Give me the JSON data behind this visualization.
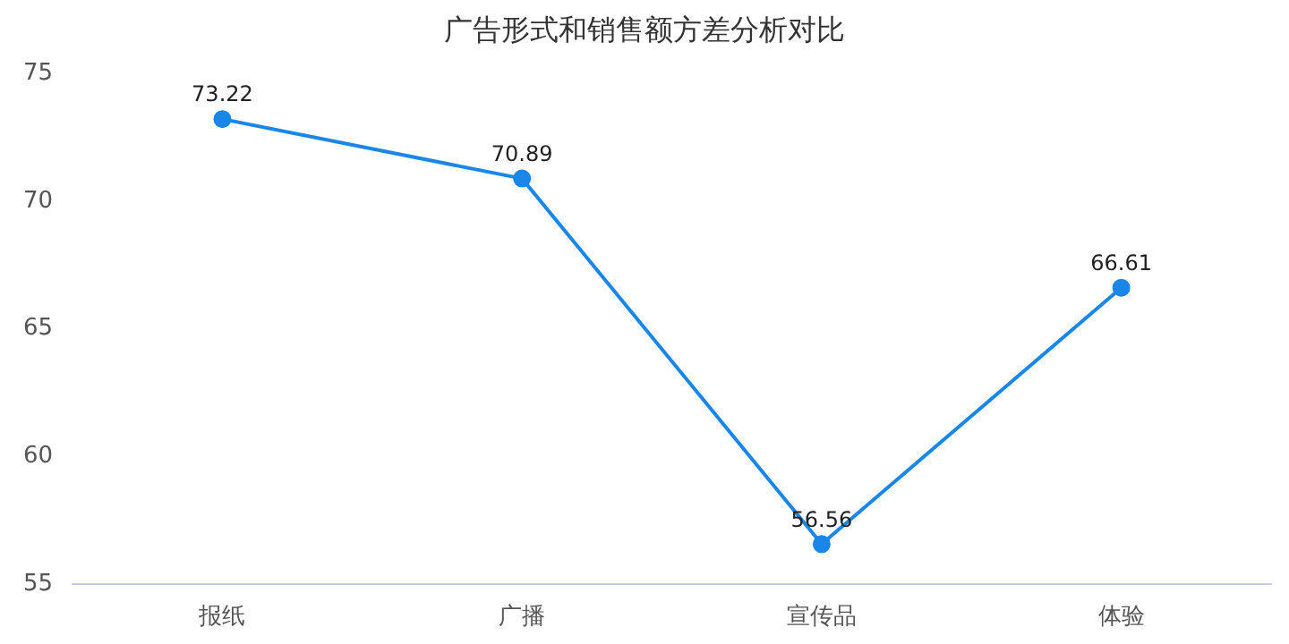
{
  "chart_data": {
    "type": "line",
    "title": "广告形式和销售额方差分析对比",
    "categories": [
      "报纸",
      "广播",
      "宣传品",
      "体验"
    ],
    "series": [
      {
        "color": "#1a87e8",
        "values": [
          73.22,
          70.89,
          56.56,
          66.61
        ]
      }
    ],
    "ylim": [
      55,
      75
    ],
    "yticks": [
      55,
      60,
      65,
      70,
      75
    ],
    "grid": false,
    "legend": false,
    "marker": "circle",
    "line_style": "solid",
    "data_labels": true
  }
}
